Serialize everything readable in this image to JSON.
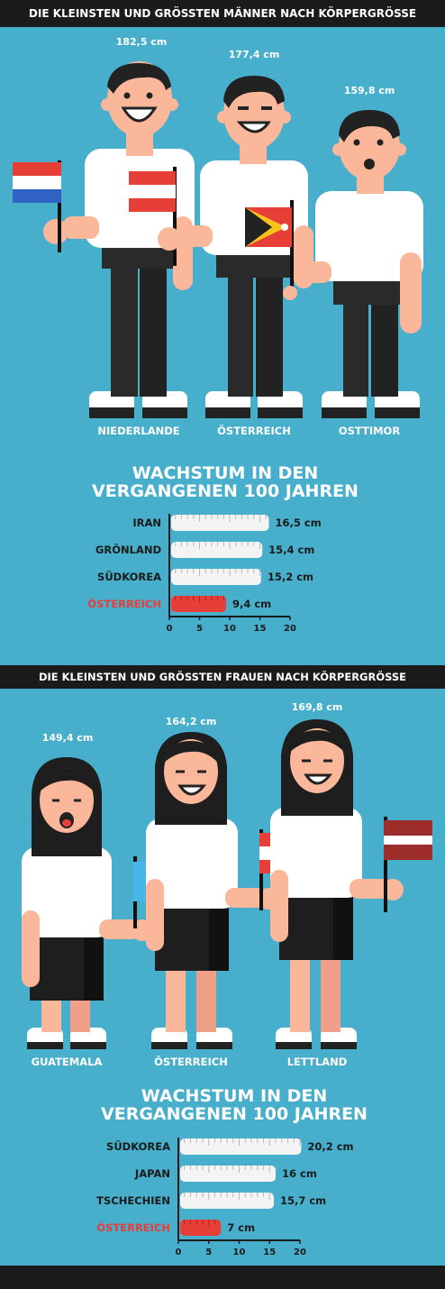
{
  "men": {
    "title": "DIE KLEINSTEN UND GRÖSSTEN MÄNNER NACH KÖRPERGRÖSSE",
    "figures": [
      {
        "country": "NIEDERLANDE",
        "height": "182,5 cm"
      },
      {
        "country": "ÖSTERREICH",
        "height": "177,4 cm"
      },
      {
        "country": "OSTTIMOR",
        "height": "159,8 cm"
      }
    ],
    "chart_title_line1": "WACHSTUM IN DEN",
    "chart_title_line2": "VERGANGENEN 100 JAHREN"
  },
  "women": {
    "title": "DIE KLEINSTEN UND GRÖSSTEN FRAUEN NACH KÖRPERGRÖSSE",
    "figures": [
      {
        "country": "GUATEMALA",
        "height": "149,4 cm"
      },
      {
        "country": "ÖSTERREICH",
        "height": "164,2 cm"
      },
      {
        "country": "LETTLAND",
        "height": "169,8 cm"
      }
    ],
    "chart_title_line1": "WACHSTUM IN DEN",
    "chart_title_line2": "VERGANGENEN 100 JAHREN"
  },
  "chart_data": [
    {
      "type": "bar",
      "orientation": "horizontal",
      "title": "WACHSTUM IN DEN VERGANGENEN 100 JAHREN",
      "categories": [
        "IRAN",
        "GRÖNLAND",
        "SÜDKOREA",
        "ÖSTERREICH"
      ],
      "values": [
        16.5,
        15.4,
        15.2,
        9.4
      ],
      "value_labels": [
        "16,5 cm",
        "15,4 cm",
        "15,2 cm",
        "9,4 cm"
      ],
      "xlim": [
        0,
        20
      ],
      "xticks": [
        "0",
        "5",
        "10",
        "15",
        "20"
      ],
      "highlight": "ÖSTERREICH",
      "colors": {
        "bar": "#f4f4f4",
        "highlight": "#e83e38"
      }
    },
    {
      "type": "bar",
      "orientation": "horizontal",
      "title": "WACHSTUM IN DEN VERGANGENEN 100 JAHREN",
      "categories": [
        "SÜDKOREA",
        "JAPAN",
        "TSCHECHIEN",
        "ÖSTERREICH"
      ],
      "values": [
        20.2,
        16,
        15.7,
        7
      ],
      "value_labels": [
        "20,2 cm",
        "16 cm",
        "15,7 cm",
        "7 cm"
      ],
      "xlim": [
        0,
        20
      ],
      "xticks": [
        "0",
        "5",
        "10",
        "15",
        "20"
      ],
      "highlight": "ÖSTERREICH",
      "colors": {
        "bar": "#f4f4f4",
        "highlight": "#e83e38"
      }
    }
  ]
}
